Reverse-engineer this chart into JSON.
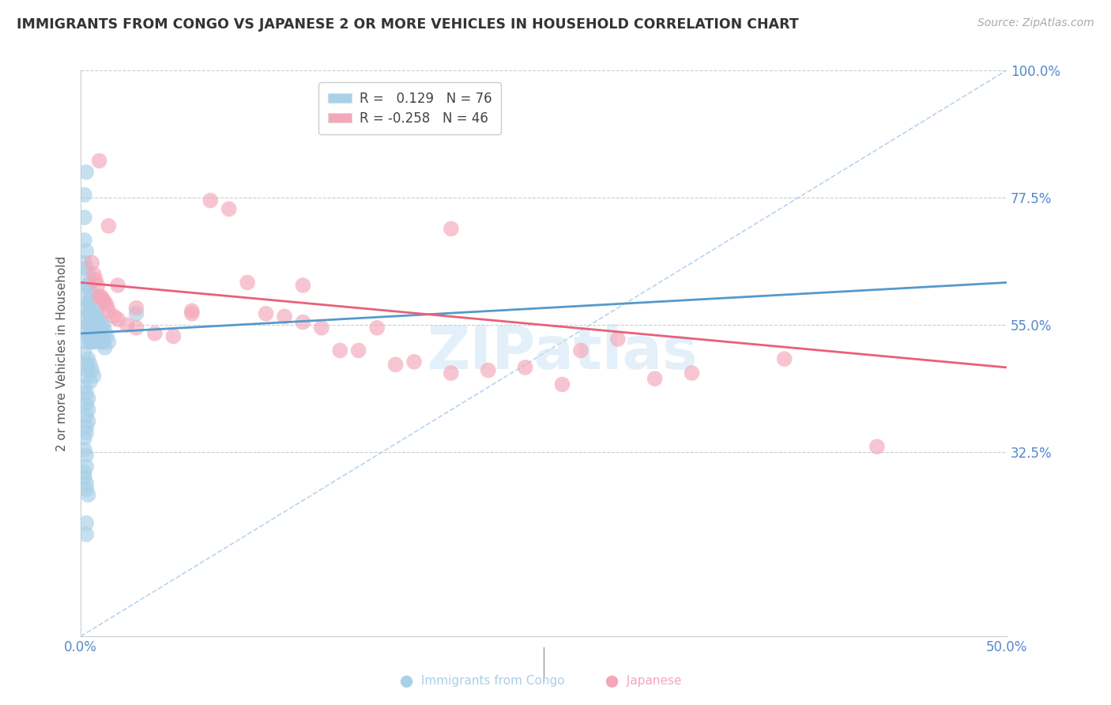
{
  "title": "IMMIGRANTS FROM CONGO VS JAPANESE 2 OR MORE VEHICLES IN HOUSEHOLD CORRELATION CHART",
  "source": "Source: ZipAtlas.com",
  "ylabel": "2 or more Vehicles in Household",
  "xlim": [
    0.0,
    0.5
  ],
  "ylim": [
    0.0,
    1.0
  ],
  "ytick_labels": [
    "100.0%",
    "77.5%",
    "55.0%",
    "32.5%"
  ],
  "ytick_values": [
    1.0,
    0.775,
    0.55,
    0.325
  ],
  "xtick_values": [
    0.0,
    0.1,
    0.2,
    0.3,
    0.4,
    0.5
  ],
  "xtick_labels": [
    "0.0%",
    "",
    "",
    "",
    "",
    "50.0%"
  ],
  "congo_R": 0.129,
  "congo_N": 76,
  "japanese_R": -0.258,
  "japanese_N": 46,
  "congo_color": "#a8d0e8",
  "japanese_color": "#f4a7b9",
  "congo_line_color": "#5599cc",
  "japanese_line_color": "#e8607a",
  "diag_line_color": "#b8d4ee",
  "watermark": "ZIPatlas",
  "congo_line_x0": 0.0,
  "congo_line_y0": 0.535,
  "congo_line_x1": 0.5,
  "congo_line_y1": 0.625,
  "japanese_line_x0": 0.0,
  "japanese_line_y0": 0.625,
  "japanese_line_x1": 0.5,
  "japanese_line_y1": 0.475,
  "congo_scatter_x": [
    0.002,
    0.002,
    0.002,
    0.002,
    0.003,
    0.003,
    0.003,
    0.003,
    0.003,
    0.003,
    0.003,
    0.003,
    0.004,
    0.004,
    0.004,
    0.004,
    0.004,
    0.004,
    0.005,
    0.005,
    0.005,
    0.005,
    0.005,
    0.006,
    0.006,
    0.006,
    0.006,
    0.007,
    0.007,
    0.007,
    0.008,
    0.008,
    0.008,
    0.009,
    0.009,
    0.01,
    0.01,
    0.011,
    0.011,
    0.012,
    0.012,
    0.013,
    0.013,
    0.014,
    0.015,
    0.002,
    0.003,
    0.003,
    0.004,
    0.004,
    0.005,
    0.005,
    0.006,
    0.007,
    0.002,
    0.003,
    0.003,
    0.004,
    0.004,
    0.003,
    0.003,
    0.004,
    0.003,
    0.002,
    0.002,
    0.003,
    0.003,
    0.002,
    0.002,
    0.003,
    0.003,
    0.004,
    0.003,
    0.003,
    0.003,
    0.03
  ],
  "congo_scatter_y": [
    0.78,
    0.74,
    0.7,
    0.66,
    0.68,
    0.65,
    0.62,
    0.6,
    0.58,
    0.56,
    0.54,
    0.52,
    0.64,
    0.62,
    0.59,
    0.57,
    0.55,
    0.53,
    0.61,
    0.59,
    0.57,
    0.55,
    0.52,
    0.6,
    0.57,
    0.55,
    0.52,
    0.58,
    0.56,
    0.53,
    0.57,
    0.55,
    0.52,
    0.56,
    0.53,
    0.56,
    0.53,
    0.55,
    0.52,
    0.55,
    0.52,
    0.54,
    0.51,
    0.53,
    0.52,
    0.5,
    0.48,
    0.46,
    0.49,
    0.47,
    0.48,
    0.45,
    0.47,
    0.46,
    0.44,
    0.43,
    0.41,
    0.42,
    0.4,
    0.39,
    0.37,
    0.38,
    0.36,
    0.35,
    0.33,
    0.32,
    0.3,
    0.29,
    0.28,
    0.27,
    0.26,
    0.25,
    0.18,
    0.82,
    0.2,
    0.57
  ],
  "japanese_scatter_x": [
    0.006,
    0.007,
    0.008,
    0.009,
    0.01,
    0.011,
    0.012,
    0.013,
    0.014,
    0.015,
    0.018,
    0.02,
    0.025,
    0.03,
    0.04,
    0.05,
    0.06,
    0.07,
    0.08,
    0.09,
    0.1,
    0.11,
    0.12,
    0.13,
    0.14,
    0.15,
    0.16,
    0.17,
    0.18,
    0.2,
    0.22,
    0.24,
    0.26,
    0.27,
    0.29,
    0.31,
    0.33,
    0.01,
    0.015,
    0.02,
    0.03,
    0.06,
    0.38,
    0.43,
    0.2,
    0.12
  ],
  "japanese_scatter_y": [
    0.66,
    0.64,
    0.63,
    0.62,
    0.6,
    0.6,
    0.595,
    0.59,
    0.585,
    0.575,
    0.565,
    0.56,
    0.55,
    0.545,
    0.535,
    0.53,
    0.575,
    0.77,
    0.755,
    0.625,
    0.57,
    0.565,
    0.555,
    0.545,
    0.505,
    0.505,
    0.545,
    0.48,
    0.485,
    0.465,
    0.47,
    0.475,
    0.445,
    0.505,
    0.525,
    0.455,
    0.465,
    0.84,
    0.725,
    0.62,
    0.58,
    0.57,
    0.49,
    0.335,
    0.72,
    0.62
  ]
}
